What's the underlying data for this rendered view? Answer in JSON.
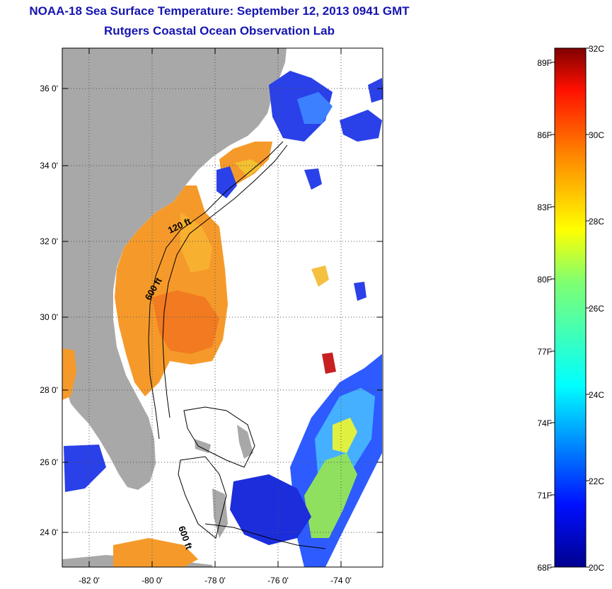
{
  "title": {
    "line1": "NOAA-18 Sea Surface Temperature:  September 12, 2013 0941 GMT",
    "line2": "Rutgers Coastal Ocean Observation Lab"
  },
  "map": {
    "lat_ticks": [
      "36 0'",
      "34 0'",
      "32 0'",
      "30 0'",
      "28 0'",
      "26 0'",
      "24 0'"
    ],
    "lon_ticks": [
      "-82 0'",
      "-80 0'",
      "-78 0'",
      "-76 0'",
      "-74 0'"
    ],
    "contour_labels": [
      "120 ft",
      "600 ft",
      "600 ft"
    ],
    "colors": {
      "land": "#a8a8a8",
      "ocean_bg": "#ffffff",
      "frame": "#000000",
      "grid": "#555555"
    }
  },
  "colorbar": {
    "celsius": [
      "32C",
      "30C",
      "28C",
      "26C",
      "24C",
      "22C",
      "20C"
    ],
    "fahrenheit": [
      "89F",
      "86F",
      "83F",
      "80F",
      "77F",
      "74F",
      "71F",
      "68F"
    ],
    "range_c": [
      20,
      32
    ]
  }
}
